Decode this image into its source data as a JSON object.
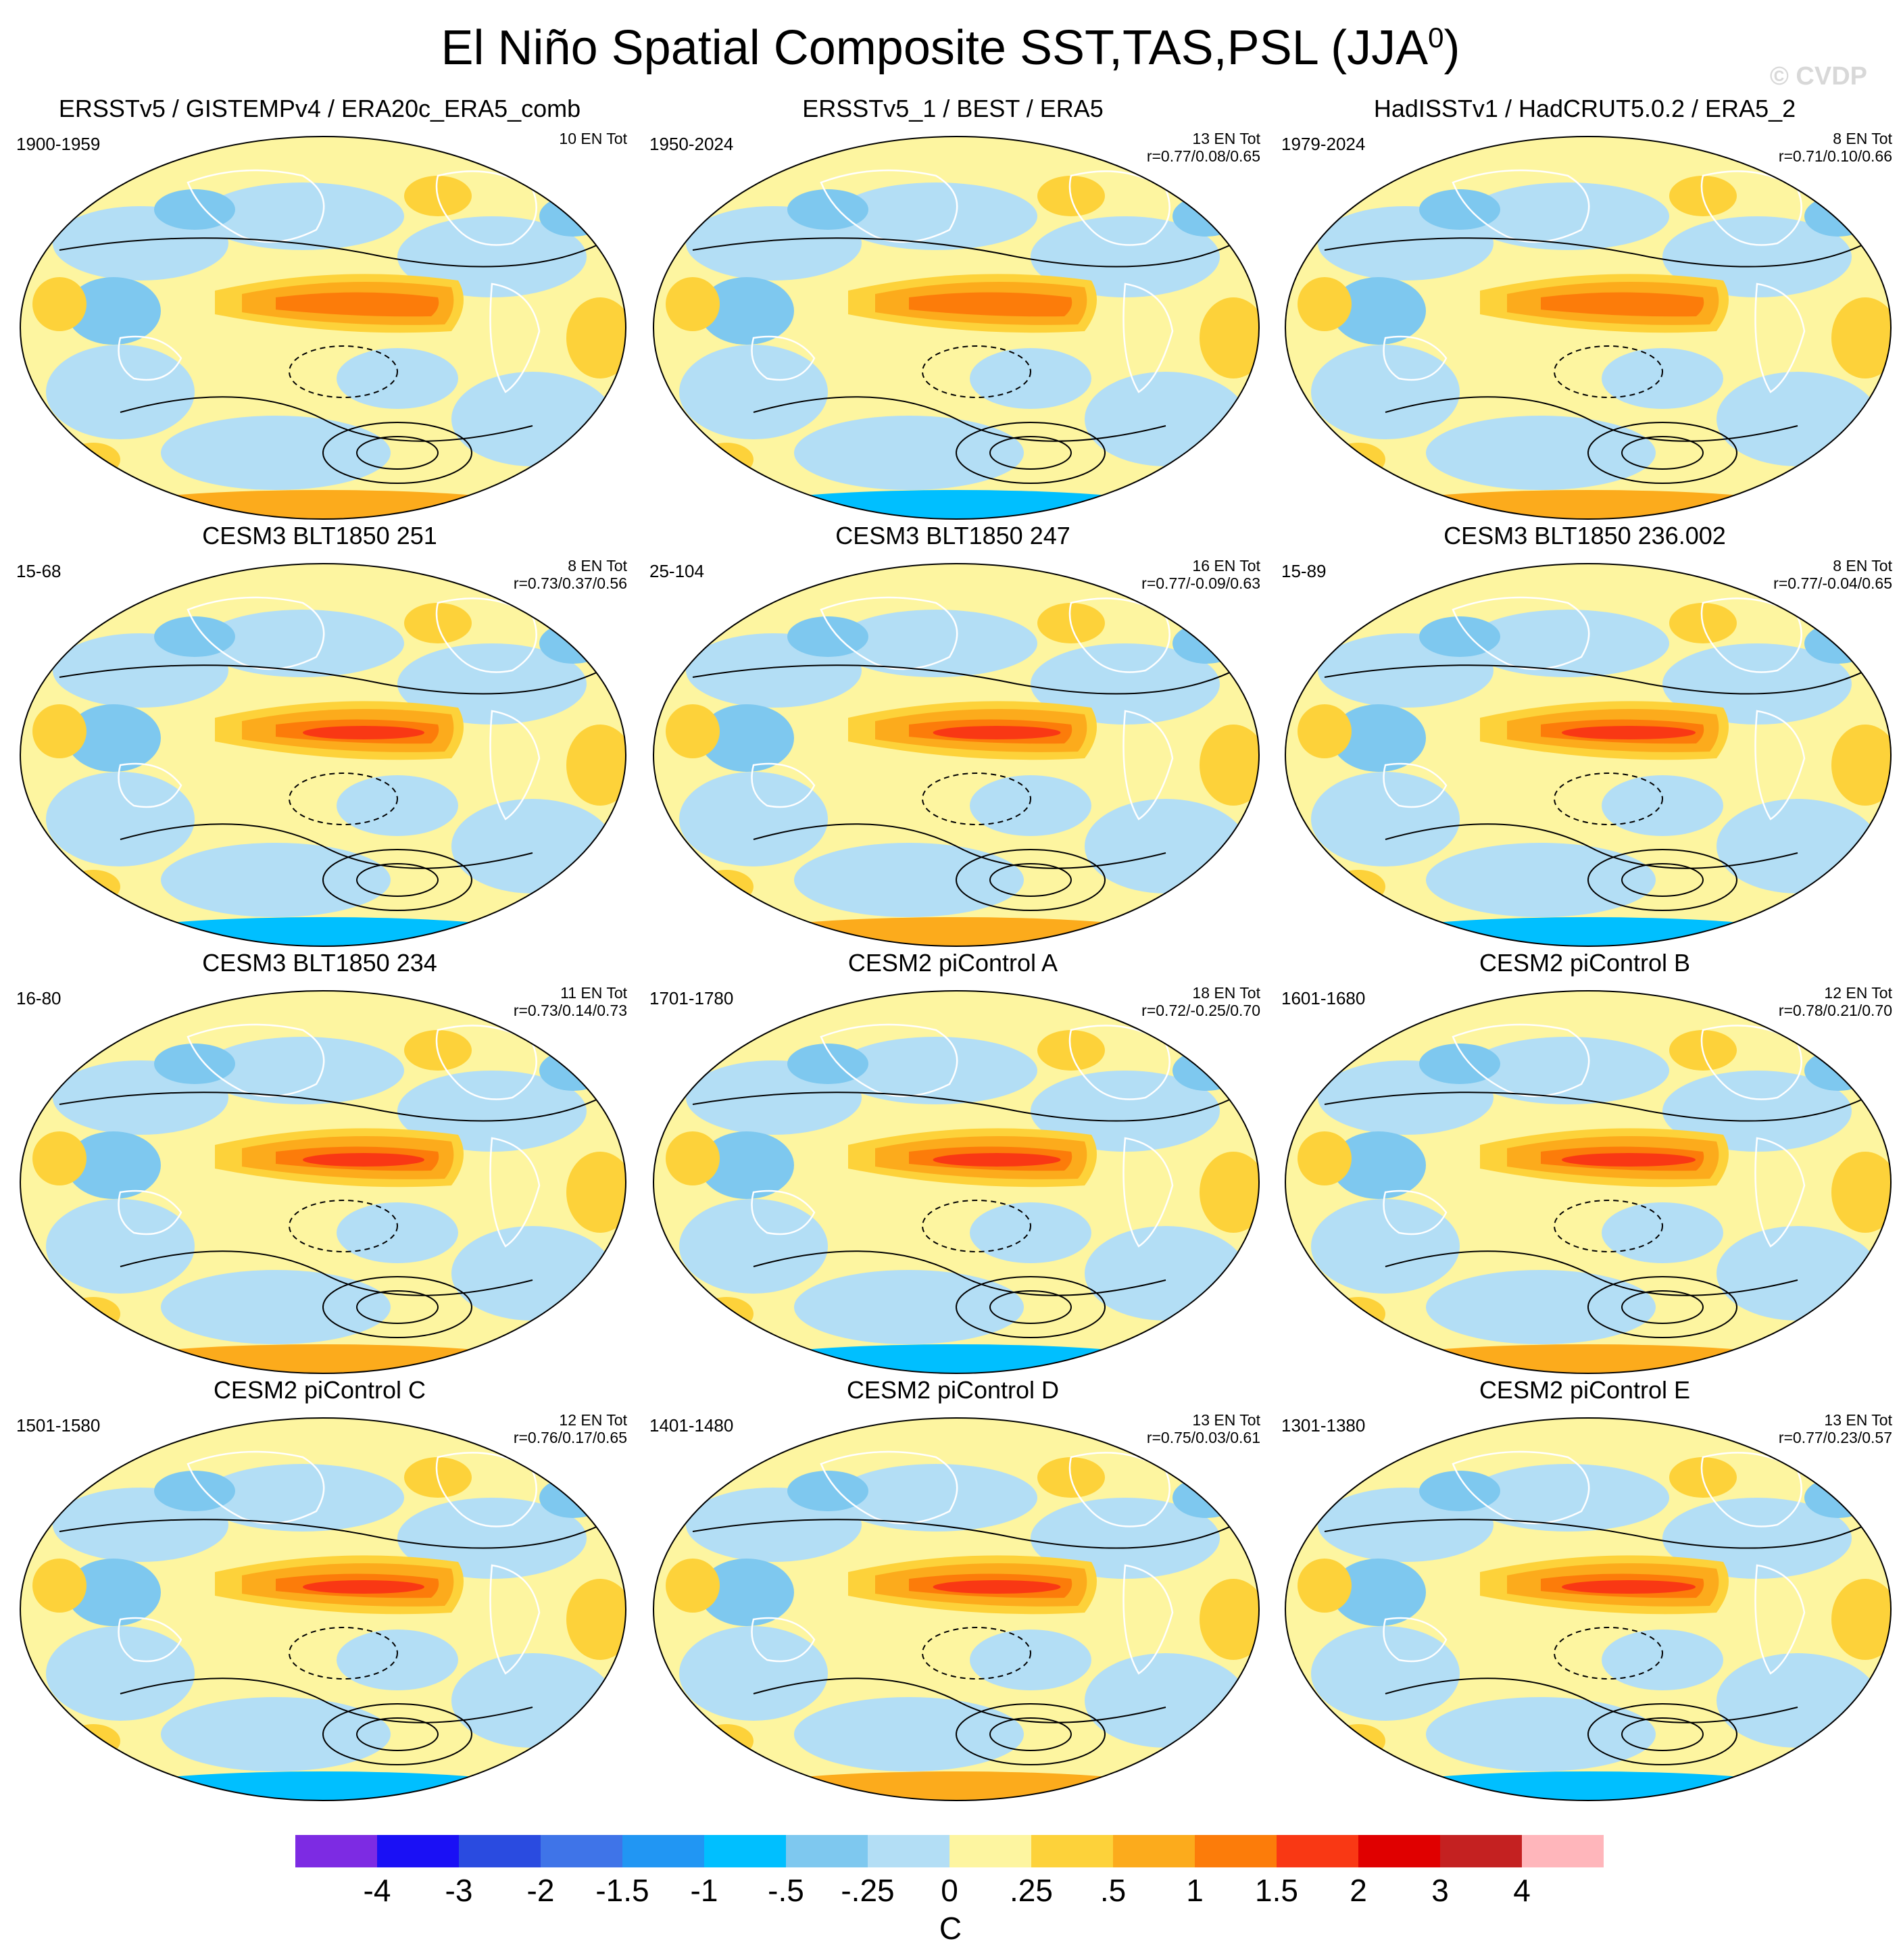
{
  "title": {
    "text": "El Niño Spatial Composite SST,TAS,PSL (JJA",
    "sup": "0",
    "close": ")"
  },
  "watermark": "© CVDP",
  "panels": [
    {
      "title": "ERSSTv5 / GISTEMPv4 / ERA20c_ERA5_comb",
      "period": "1900-1959",
      "entot": "10 EN Tot",
      "corr": ""
    },
    {
      "title": "ERSSTv5_1 / BEST / ERA5",
      "period": "1950-2024",
      "entot": "13 EN Tot",
      "corr": "r=0.77/0.08/0.65"
    },
    {
      "title": "HadISSTv1 / HadCRUT5.0.2 / ERA5_2",
      "period": "1979-2024",
      "entot": "8 EN Tot",
      "corr": "r=0.71/0.10/0.66"
    },
    {
      "title": "CESM3 BLT1850 251",
      "period": "15-68",
      "entot": "8 EN Tot",
      "corr": "r=0.73/0.37/0.56"
    },
    {
      "title": "CESM3 BLT1850 247",
      "period": "25-104",
      "entot": "16 EN Tot",
      "corr": "r=0.77/-0.09/0.63"
    },
    {
      "title": "CESM3 BLT1850 236.002",
      "period": "15-89",
      "entot": "8 EN Tot",
      "corr": "r=0.77/-0.04/0.65"
    },
    {
      "title": "CESM3 BLT1850 234",
      "period": "16-80",
      "entot": "11 EN Tot",
      "corr": "r=0.73/0.14/0.73"
    },
    {
      "title": "CESM2 piControl A",
      "period": "1701-1780",
      "entot": "18 EN Tot",
      "corr": "r=0.72/-0.25/0.70"
    },
    {
      "title": "CESM2 piControl B",
      "period": "1601-1680",
      "entot": "12 EN Tot",
      "corr": "r=0.78/0.21/0.70"
    },
    {
      "title": "CESM2 piControl C",
      "period": "1501-1580",
      "entot": "12 EN Tot",
      "corr": "r=0.76/0.17/0.65"
    },
    {
      "title": "CESM2 piControl D",
      "period": "1401-1480",
      "entot": "13 EN Tot",
      "corr": "r=0.75/0.03/0.61"
    },
    {
      "title": "CESM2 piControl E",
      "period": "1301-1380",
      "entot": "13 EN Tot",
      "corr": "r=0.77/0.23/0.57"
    }
  ],
  "colorbar": {
    "unit": "C",
    "colors": [
      "#7d2be3",
      "#1a10f5",
      "#2a4be0",
      "#3f74e8",
      "#2196f3",
      "#00bfff",
      "#7ec8ef",
      "#b3def5",
      "#fdf5a0",
      "#fdd23a",
      "#fcab1c",
      "#fc7c0a",
      "#f93814",
      "#e00000",
      "#c42121",
      "#ffb6bb"
    ],
    "ticks": [
      "-4",
      "-3",
      "-2",
      "-1.5",
      "-1",
      "-.5",
      "-.25",
      "0",
      ".25",
      ".5",
      "1",
      "1.5",
      "2",
      "3",
      "4"
    ]
  }
}
